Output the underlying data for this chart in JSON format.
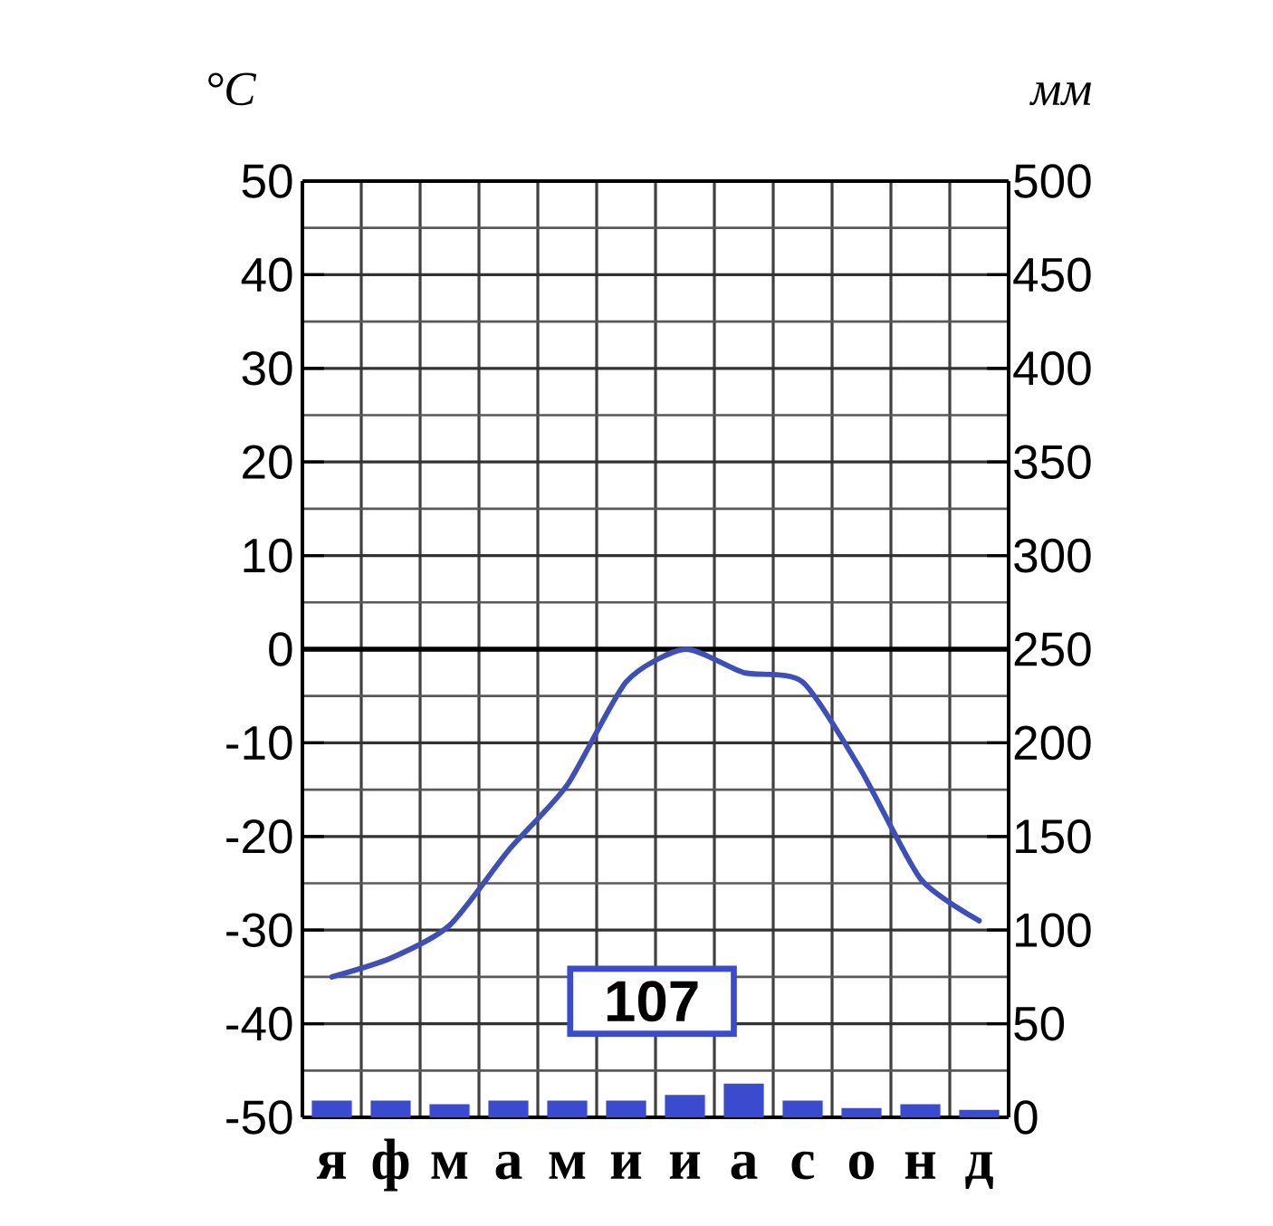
{
  "chart_data": {
    "type": "line",
    "ylabel": "°C",
    "y2label": "мм",
    "categories": [
      "я",
      "ф",
      "м",
      "а",
      "м",
      "и",
      "и",
      "а",
      "с",
      "о",
      "н",
      "д"
    ],
    "series": [
      {
        "color": "#3f4fb8",
        "values": [
          -35,
          -33,
          -29.5,
          -21.5,
          -14.5,
          -3.5,
          0,
          -2.5,
          -3.5,
          -13,
          -24.5,
          -29
        ]
      },
      {
        "type": "bar",
        "axis": "y2",
        "color": "#3b4bd0",
        "values": [
          9,
          9,
          7,
          9,
          9,
          9,
          12,
          18,
          9,
          5,
          7,
          4
        ]
      }
    ],
    "ylim": [
      -50,
      50
    ],
    "yticks": [
      -50,
      -40,
      -30,
      -20,
      -10,
      0,
      10,
      20,
      30,
      40,
      50
    ],
    "y2lim": [
      0,
      500
    ],
    "y2ticks": [
      0,
      50,
      100,
      150,
      200,
      250,
      300,
      350,
      400,
      450,
      500
    ],
    "grid": true,
    "annotations": [
      "107"
    ]
  }
}
